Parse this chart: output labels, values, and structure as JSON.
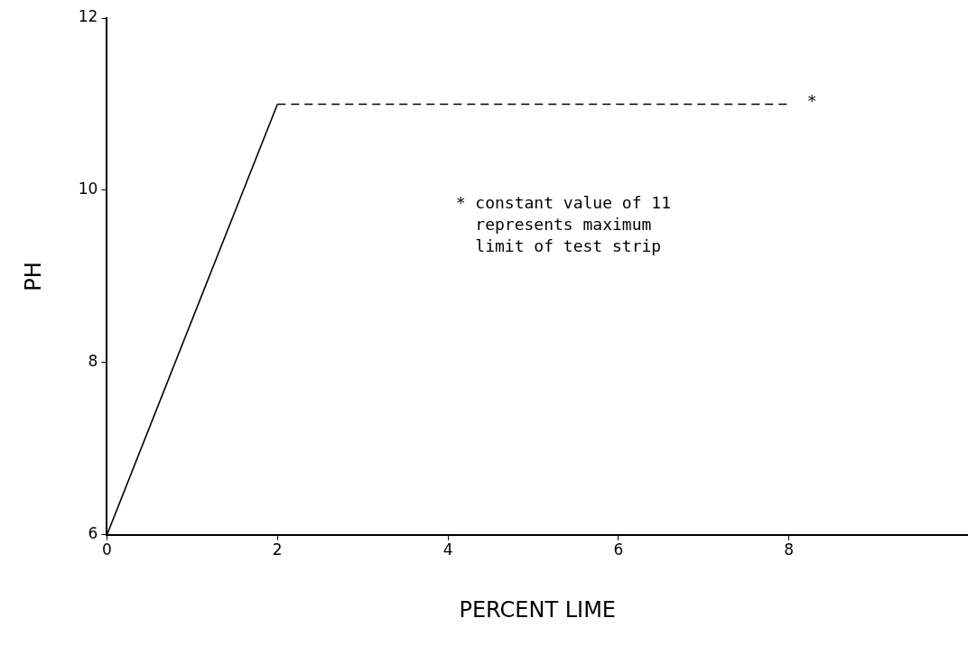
{
  "chart_data": {
    "type": "line",
    "xlabel": "PERCENT LIME",
    "ylabel": "PH",
    "xlim": [
      0,
      10.1
    ],
    "xticks": [
      0,
      2,
      4,
      6,
      8
    ],
    "ylim": [
      6,
      12
    ],
    "yticks": [
      6,
      8,
      10,
      12
    ],
    "grid": false,
    "legend": false,
    "marker": "none",
    "series": [
      {
        "color": "#000000",
        "x": [
          0,
          2
        ],
        "values": [
          6,
          11
        ],
        "line_style": "solid"
      },
      {
        "color": "#000000",
        "x": [
          2,
          8
        ],
        "values": [
          11,
          11
        ],
        "line_style": "dashed"
      }
    ],
    "annotations": [
      "*",
      "* constant value of 11\n  represents maximum\n  limit of test strip"
    ]
  }
}
